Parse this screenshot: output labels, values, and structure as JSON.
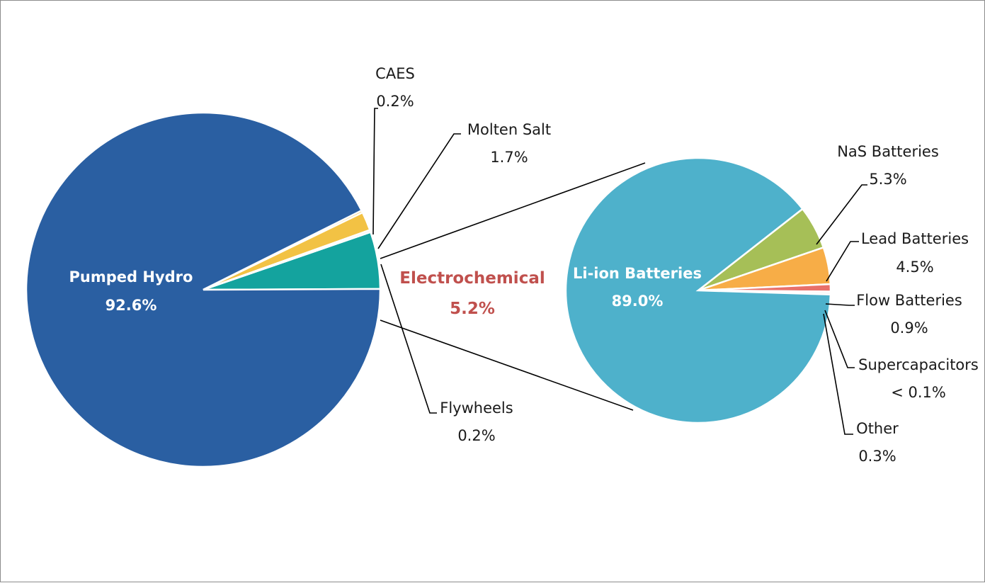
{
  "chart_data": [
    {
      "type": "pie",
      "slices": [
        {
          "label": "Pumped Hydro",
          "value_label": "92.6%",
          "value": 92.6,
          "color": "#2a5fa2"
        },
        {
          "label": "CAES",
          "value_label": "0.2%",
          "value": 0.2,
          "color": "#f2c244"
        },
        {
          "label": "Molten Salt",
          "value_label": "1.7%",
          "value": 1.7,
          "color": "#f2c244"
        },
        {
          "label": "Flywheels",
          "value_label": "0.2%",
          "value": 0.2,
          "color": "#e8e8e8"
        },
        {
          "label": "Electrochemical",
          "value_label": "5.2%",
          "value": 5.2,
          "color": "#14a39e"
        }
      ]
    },
    {
      "type": "pie",
      "parent": "Electrochemical",
      "slices": [
        {
          "label": "Li-ion Batteries",
          "value_label": "89.0%",
          "value": 89.0,
          "color": "#4eb1cb"
        },
        {
          "label": "NaS Batteries",
          "value_label": "5.3%",
          "value": 5.3,
          "color": "#a6bf57"
        },
        {
          "label": "Lead Batteries",
          "value_label": "4.5%",
          "value": 4.5,
          "color": "#f7ad47"
        },
        {
          "label": "Flow Batteries",
          "value_label": "0.9%",
          "value": 0.9,
          "color": "#e8706a"
        },
        {
          "label": "Supercapacitors",
          "value_label": "< 0.1%",
          "value": 0.05,
          "color": "#d9d9d9"
        },
        {
          "label": "Other",
          "value_label": "0.3%",
          "value": 0.3,
          "color": "#eeeeee"
        }
      ]
    }
  ],
  "colors": {
    "electrochemical_label": "#c0504d",
    "line": "#000000"
  }
}
